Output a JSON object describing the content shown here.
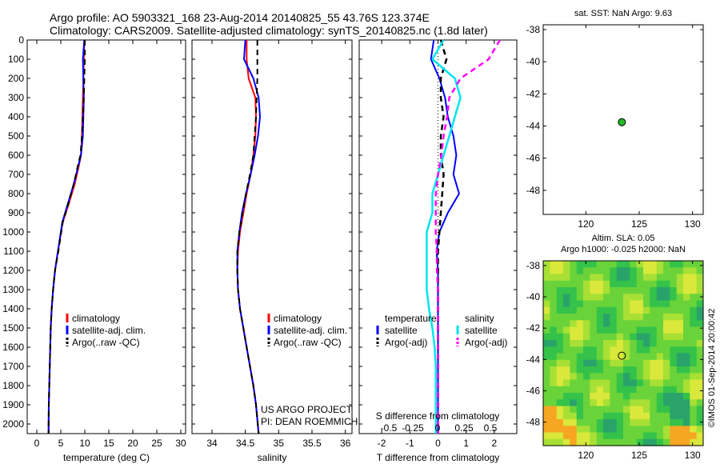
{
  "header": {
    "title_line1": "Argo profile: AO 5903321_168 23-Aug-2014 20140825_55 43.76S 123.374E",
    "title_line2": "Climatology: CARS2009. Satellite-adjusted climatology: synTS_20140825.nc (1.8d later)"
  },
  "colors": {
    "climatology": "#ff0000",
    "satellite": "#0000ff",
    "argo": "#000000",
    "sal_satellite": "#00e5ee",
    "sal_argo": "#ff00ff",
    "marker": "#22bb22"
  },
  "chart_data": [
    {
      "type": "line",
      "panel": "temperature",
      "xlabel": "temperature (deg C)",
      "ylabel": "",
      "xlim": [
        -2,
        31
      ],
      "ylim": [
        2050,
        0
      ],
      "xticks": [
        0,
        5,
        10,
        15,
        20,
        25,
        30
      ],
      "yticks": [
        0,
        100,
        200,
        300,
        400,
        500,
        600,
        700,
        800,
        900,
        1000,
        1100,
        1200,
        1300,
        1400,
        1500,
        1600,
        1700,
        1800,
        1900,
        2000
      ],
      "legend": [
        "climatology",
        "satellite-adj. clim.",
        "Argo(..raw -QC)"
      ],
      "series": [
        {
          "name": "climatology",
          "x": [
            9.9,
            9.8,
            9.7,
            9.6,
            9.5,
            9.4,
            9.2,
            8.8,
            7.9,
            6.7,
            5.4,
            4.4,
            3.8,
            3.4,
            3.1,
            2.9,
            2.8,
            2.7,
            2.6,
            2.5,
            2.45
          ],
          "y": [
            0,
            100,
            200,
            300,
            400,
            500,
            600,
            650,
            750,
            850,
            950,
            1100,
            1200,
            1300,
            1400,
            1500,
            1600,
            1700,
            1800,
            1900,
            2050
          ]
        },
        {
          "name": "satellite-adj. clim.",
          "x": [
            9.9,
            9.6,
            9.7,
            9.8,
            9.7,
            9.6,
            9.2,
            8.7,
            7.7,
            6.5,
            5.3,
            4.4,
            3.8,
            3.4,
            3.1,
            2.9,
            2.8,
            2.7,
            2.6,
            2.5,
            2.45
          ],
          "y": [
            0,
            100,
            200,
            300,
            400,
            500,
            600,
            650,
            750,
            850,
            950,
            1100,
            1200,
            1300,
            1400,
            1500,
            1600,
            1700,
            1800,
            1900,
            2050
          ]
        },
        {
          "name": "Argo(..raw -QC)",
          "x": [
            10.0,
            10.0,
            9.9,
            9.8,
            9.6,
            9.4,
            9.1,
            8.6,
            7.7,
            6.6,
            5.4,
            4.5,
            3.8,
            3.4,
            3.1,
            2.9,
            2.8,
            2.7,
            2.6,
            2.5,
            2.45
          ],
          "y": [
            0,
            100,
            200,
            300,
            400,
            500,
            600,
            650,
            750,
            850,
            950,
            1100,
            1200,
            1300,
            1400,
            1500,
            1600,
            1700,
            1800,
            1900,
            2050
          ]
        }
      ]
    },
    {
      "type": "line",
      "panel": "salinity",
      "xlabel": "salinity",
      "xlim": [
        33.7,
        36.1
      ],
      "ylim": [
        2050,
        0
      ],
      "xticks": [
        34,
        34.5,
        35,
        35.5,
        36
      ],
      "legend": [
        "climatology",
        "satellite-adj. clim.",
        "Argo(..raw -QC)"
      ],
      "annotation": [
        "US ARGO PROJECT",
        "PI: DEAN ROEMMICH"
      ],
      "series": [
        {
          "name": "climatology",
          "x": [
            34.52,
            34.52,
            34.55,
            34.65,
            34.66,
            34.65,
            34.62,
            34.58,
            34.52,
            34.47,
            34.42,
            34.39,
            34.38,
            34.39,
            34.42,
            34.47,
            34.52,
            34.57,
            34.62,
            34.66,
            34.7
          ],
          "y": [
            0,
            100,
            200,
            300,
            400,
            500,
            600,
            700,
            800,
            900,
            1000,
            1100,
            1200,
            1300,
            1400,
            1500,
            1600,
            1700,
            1800,
            1900,
            2050
          ]
        },
        {
          "name": "satellite-adj. clim.",
          "x": [
            34.5,
            34.48,
            34.62,
            34.7,
            34.72,
            34.69,
            34.64,
            34.58,
            34.51,
            34.45,
            34.41,
            34.38,
            34.38,
            34.39,
            34.42,
            34.47,
            34.52,
            34.57,
            34.62,
            34.66,
            34.7
          ],
          "y": [
            0,
            100,
            200,
            300,
            400,
            500,
            600,
            700,
            800,
            900,
            1000,
            1100,
            1200,
            1300,
            1400,
            1500,
            1600,
            1700,
            1800,
            1900,
            2050
          ]
        },
        {
          "name": "Argo(..raw -QC)",
          "x": [
            34.68,
            34.68,
            34.68,
            34.67,
            34.66,
            34.64,
            34.62,
            34.57,
            34.51,
            34.46,
            34.41,
            34.38,
            34.38,
            34.39,
            34.42,
            34.47,
            34.52,
            34.57,
            34.62,
            34.66,
            34.7
          ],
          "y": [
            0,
            100,
            200,
            300,
            400,
            500,
            600,
            700,
            800,
            900,
            1000,
            1100,
            1200,
            1300,
            1400,
            1500,
            1600,
            1700,
            1800,
            1900,
            2050
          ]
        }
      ]
    },
    {
      "type": "line",
      "panel": "difference",
      "xlabel": "T difference from climatology",
      "x2label": "S difference from climatology",
      "xlim": [
        -2.8,
        2.8
      ],
      "ylim": [
        2050,
        0
      ],
      "xticks": [
        -2,
        -1,
        0,
        1,
        2
      ],
      "x2ticks": [
        "-0.5",
        "-0.25",
        "0",
        "0.25",
        "0.5"
      ],
      "legend": {
        "temperature": [
          "satellite",
          "Argo(-adj)"
        ],
        "salinity": [
          "satellite",
          "Argo(-adj)"
        ]
      },
      "legend_titles": [
        "temperature",
        "salinity"
      ],
      "series": [
        {
          "name": "temperature satellite",
          "x": [
            -0.15,
            -0.25,
            0.05,
            0.25,
            0.35,
            0.55,
            0.65,
            0.55,
            0.75,
            0.35,
            0.05,
            -0.05,
            0.0,
            0.0,
            0.0,
            0.0,
            0.0,
            0.0,
            0.0,
            0.0,
            0.0
          ],
          "y": [
            0,
            100,
            200,
            300,
            400,
            500,
            600,
            700,
            800,
            900,
            1000,
            1100,
            1200,
            1300,
            1400,
            1500,
            1600,
            1700,
            1800,
            1900,
            2050
          ]
        },
        {
          "name": "temperature Argo(-adj)",
          "x": [
            0.1,
            0.3,
            0.1,
            0.1,
            0.2,
            0.1,
            0.1,
            0.2,
            0.15,
            0.1,
            0.05,
            0.0,
            0.0,
            0.0,
            0.0,
            0.0,
            0.0,
            0.0,
            0.0,
            0.0,
            0.0
          ],
          "y": [
            0,
            100,
            200,
            300,
            400,
            500,
            600,
            700,
            800,
            900,
            1000,
            1100,
            1200,
            1300,
            1400,
            1500,
            1600,
            1700,
            1800,
            1900,
            2050
          ]
        },
        {
          "name": "salinity satellite",
          "x": [
            0.05,
            -0.05,
            0.15,
            0.2,
            0.15,
            0.1,
            0.05,
            0.0,
            -0.05,
            -0.05,
            -0.1,
            -0.1,
            -0.1,
            -0.1,
            -0.08,
            -0.05,
            -0.03,
            -0.02,
            -0.02,
            -0.02,
            -0.02
          ],
          "y": [
            0,
            100,
            200,
            300,
            400,
            500,
            600,
            700,
            800,
            900,
            1000,
            1100,
            1200,
            1300,
            1400,
            1500,
            1600,
            1700,
            1800,
            1900,
            2050
          ]
        },
        {
          "name": "salinity Argo(-adj)",
          "x": [
            0.55,
            0.45,
            0.2,
            0.1,
            0.08,
            0.05,
            0.03,
            0.0,
            -0.02,
            -0.02,
            -0.02,
            -0.01,
            -0.01,
            0.0,
            0.0,
            0.0,
            0.0,
            0.0,
            0.0,
            0.0,
            0.0
          ],
          "y": [
            0,
            100,
            200,
            300,
            400,
            500,
            600,
            700,
            800,
            900,
            1000,
            1100,
            1200,
            1300,
            1400,
            1500,
            1600,
            1700,
            1800,
            1900,
            2050
          ]
        }
      ]
    },
    {
      "type": "scatter",
      "panel": "sst_map",
      "title": "sat. SST: NaN Argo: 9.63",
      "xlim": [
        116,
        131
      ],
      "ylim": [
        -49.5,
        -37.7
      ],
      "xticks": [
        120,
        125,
        130
      ],
      "yticks": [
        -38,
        -40,
        -42,
        -44,
        -46,
        -48
      ],
      "points": [
        {
          "x": 123.374,
          "y": -43.76
        }
      ]
    },
    {
      "type": "heatmap",
      "panel": "sla_map",
      "title": [
        "Altim. SLA: 0.05",
        "Argo h1000: -0.025 h2000: NaN"
      ],
      "xlim": [
        116,
        131
      ],
      "ylim": [
        -49.5,
        -37.7
      ],
      "xticks": [
        120,
        125,
        130
      ],
      "yticks": [
        -38,
        -40,
        -42,
        -44,
        -46,
        -48
      ],
      "points": [
        {
          "x": 123.374,
          "y": -43.76
        }
      ],
      "side_label": "©IMOS 01-Sep-2014 20:00:42"
    }
  ]
}
